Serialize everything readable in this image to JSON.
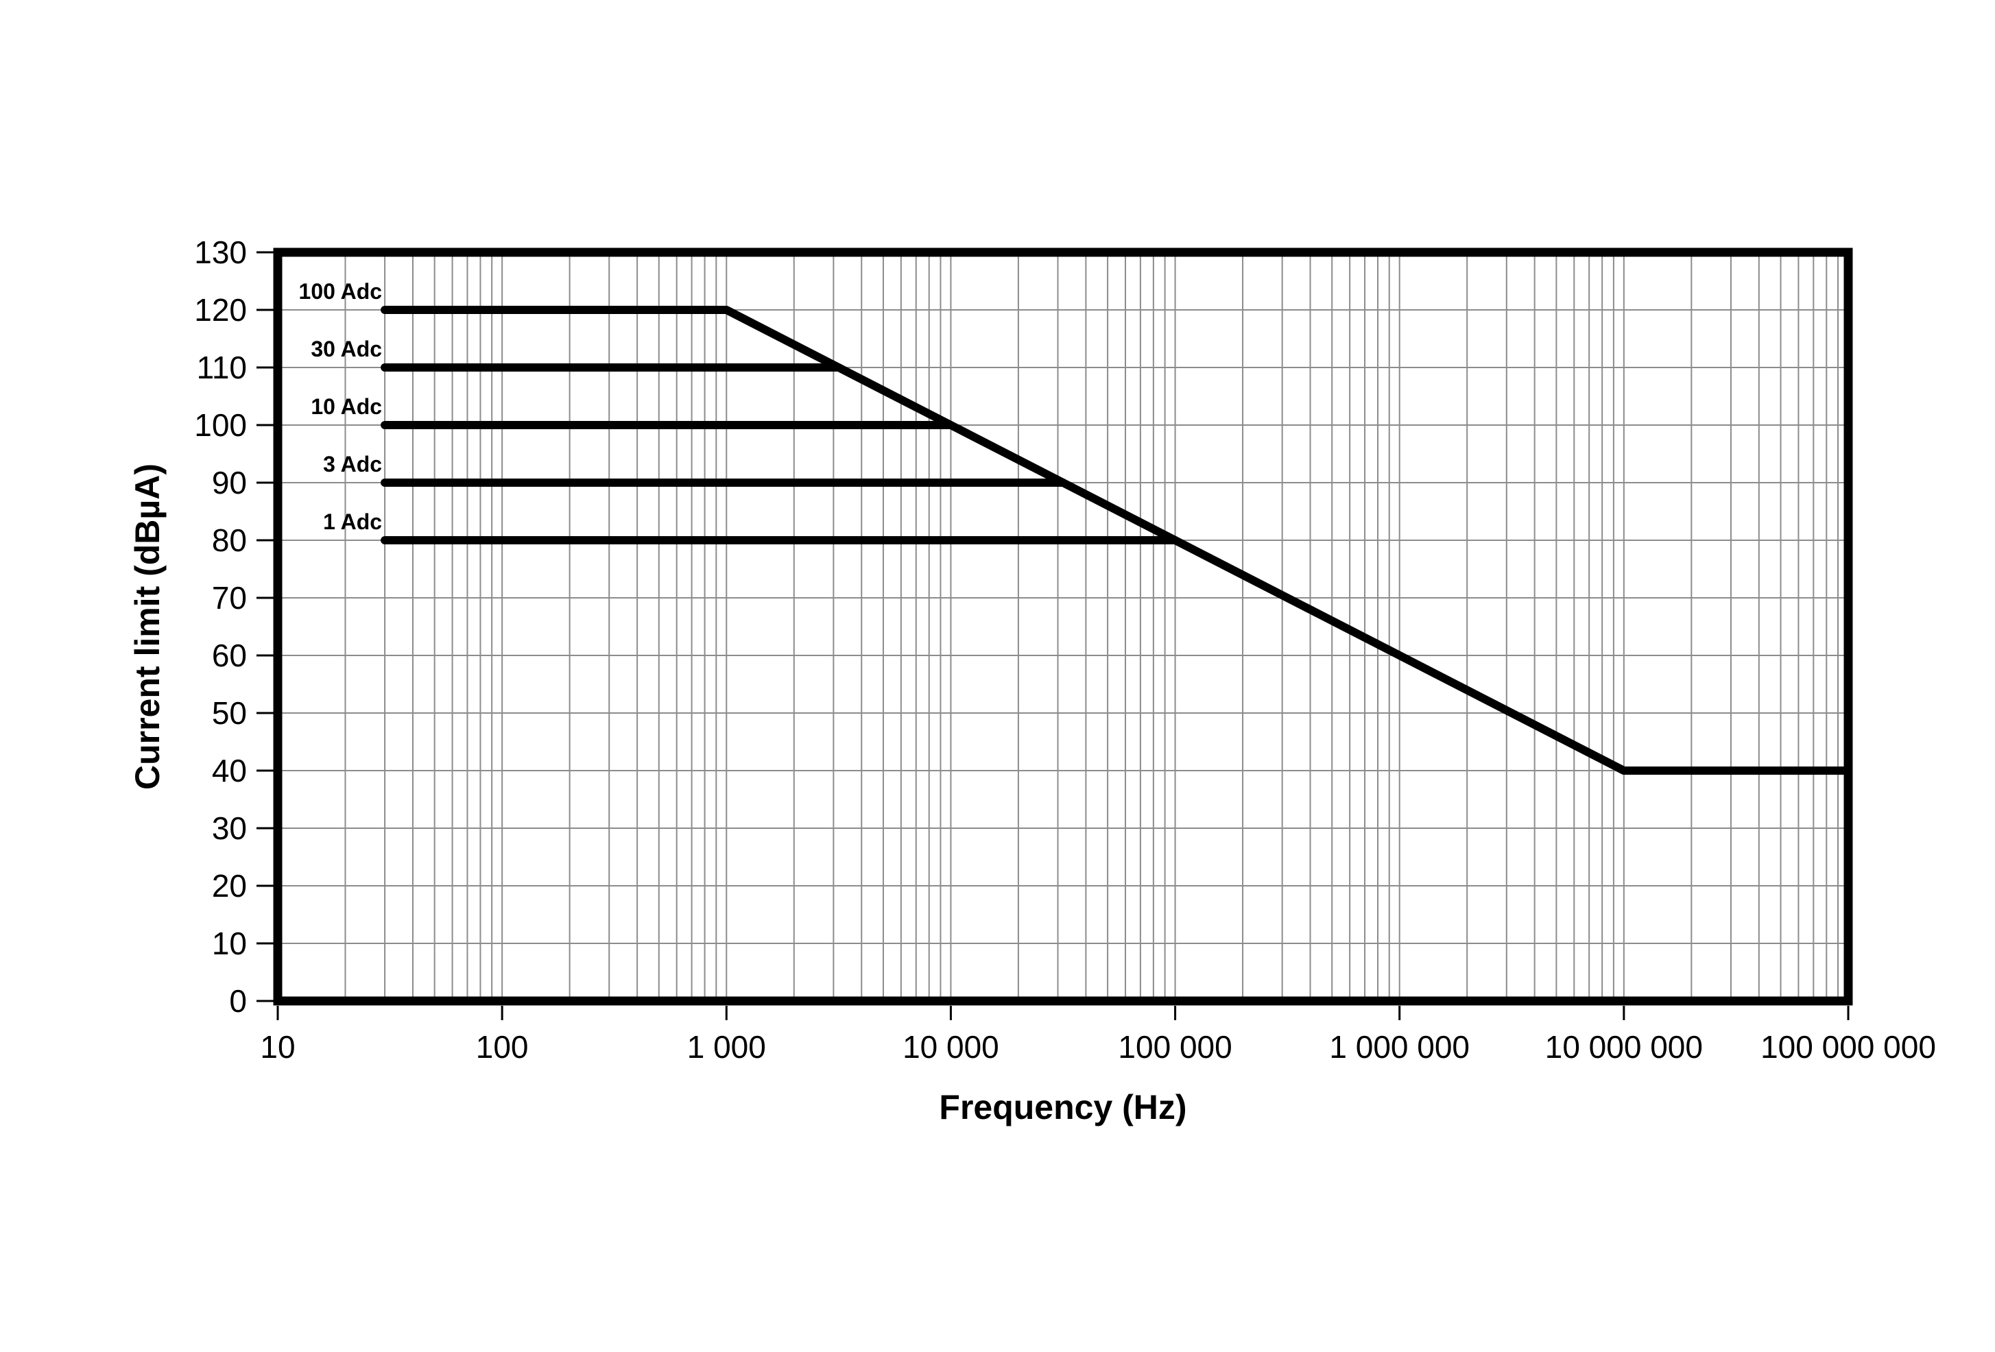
{
  "page": {
    "background": "#ffffff"
  },
  "chart_data": {
    "type": "line",
    "title": "",
    "xlabel": "Frequency (Hz)",
    "ylabel": "Current limit (dBµA)",
    "x_scale": "log",
    "xlim": [
      10,
      100000000
    ],
    "ylim": [
      0,
      130
    ],
    "y_tick_step": 10,
    "y_tick_labels": [
      "0",
      "10",
      "20",
      "30",
      "40",
      "50",
      "60",
      "70",
      "80",
      "90",
      "100",
      "110",
      "120",
      "130"
    ],
    "x_ticks": [
      {
        "value": 10,
        "label": "10"
      },
      {
        "value": 100,
        "label": "100"
      },
      {
        "value": 1000,
        "label": "1 000"
      },
      {
        "value": 10000,
        "label": "10 000"
      },
      {
        "value": 100000,
        "label": "100 000"
      },
      {
        "value": 1000000,
        "label": "1 000 000"
      },
      {
        "value": 10000000,
        "label": "10 000 000"
      },
      {
        "value": 100000000,
        "label": "100 000 000"
      }
    ],
    "grid": {
      "horizontal_every": 10,
      "vertical_major_decades": true,
      "vertical_minor_log": true,
      "color": "#8c8c8c"
    },
    "line_color": "#000000",
    "line_width": 12,
    "frame_color": "#000000",
    "series": [
      {
        "name": "100 Adc",
        "level_dbua": 120,
        "points": [
          [
            30,
            120
          ],
          [
            1000,
            120
          ],
          [
            10000000,
            40
          ],
          [
            100000000,
            40
          ]
        ]
      },
      {
        "name": "30 Adc",
        "level_dbua": 110,
        "points": [
          [
            30,
            110
          ],
          [
            3162,
            110
          ]
        ]
      },
      {
        "name": "10 Adc",
        "level_dbua": 100,
        "points": [
          [
            30,
            100
          ],
          [
            10000,
            100
          ]
        ]
      },
      {
        "name": "3 Adc",
        "level_dbua": 90,
        "points": [
          [
            30,
            90
          ],
          [
            31623,
            90
          ]
        ]
      },
      {
        "name": "1 Adc",
        "level_dbua": 80,
        "points": [
          [
            30,
            80
          ],
          [
            100000,
            80
          ]
        ]
      }
    ],
    "slope_db_per_decade": -20
  }
}
